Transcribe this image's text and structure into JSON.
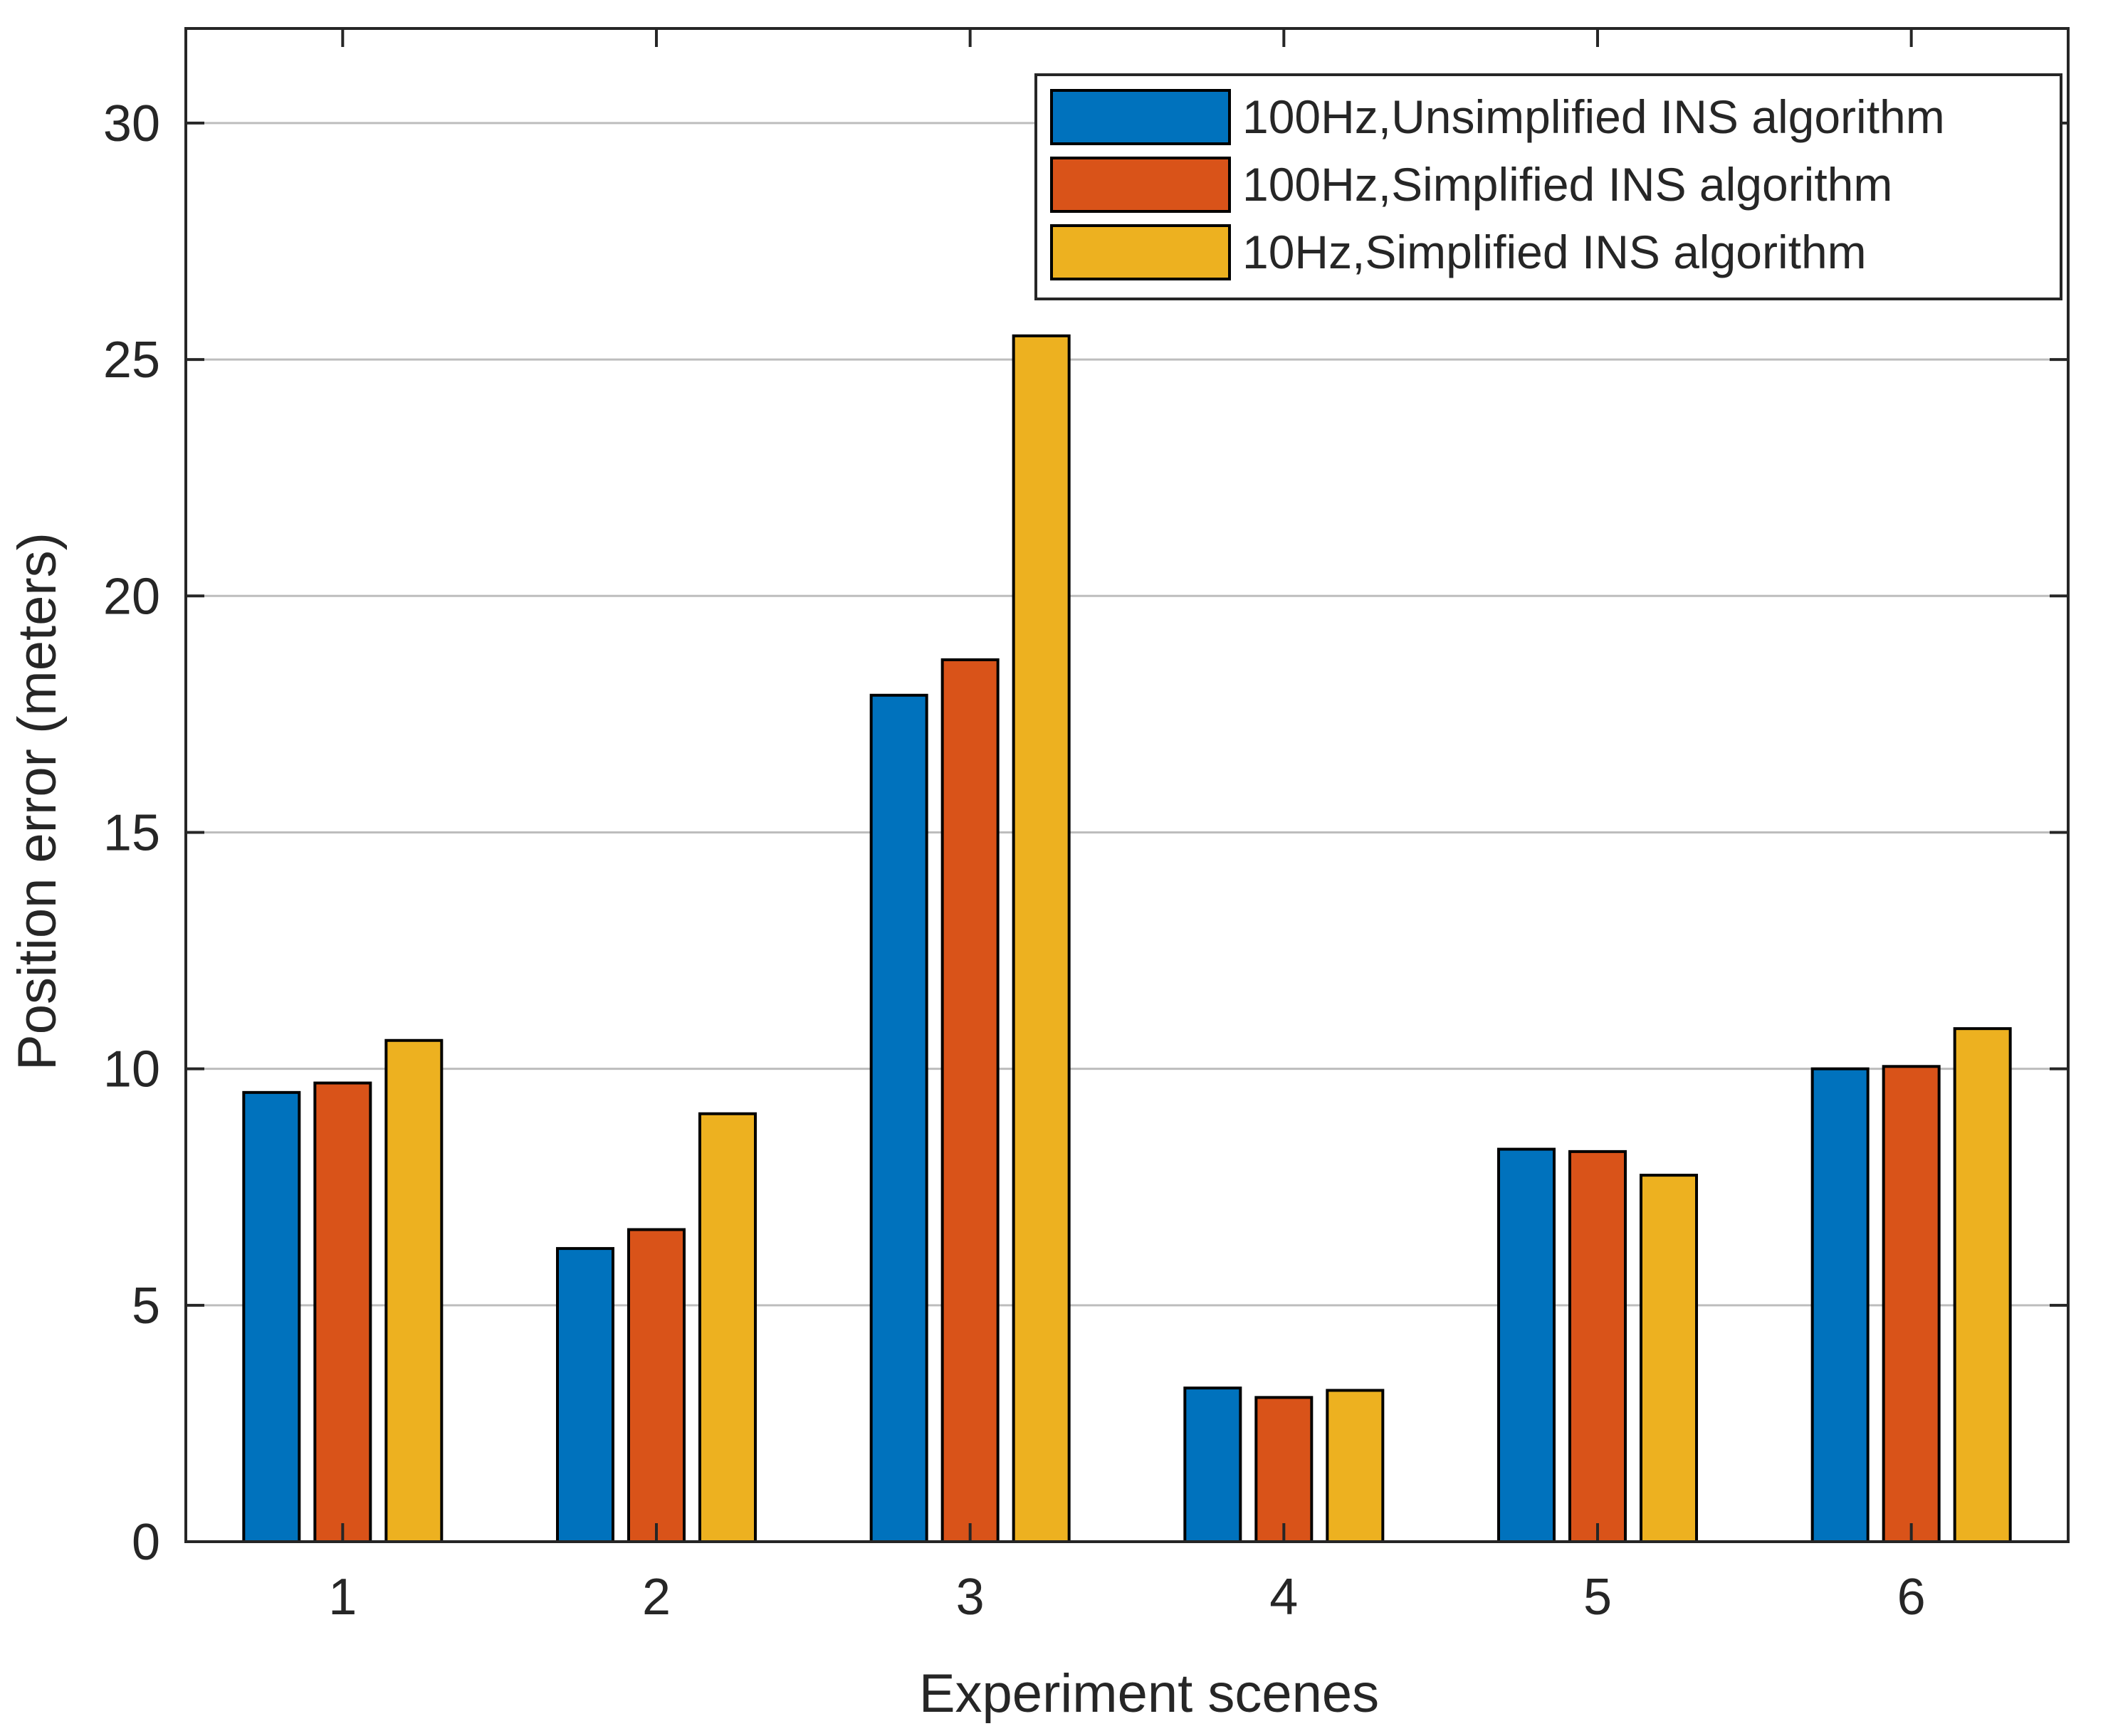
{
  "chart_data": {
    "type": "bar",
    "title": "",
    "xlabel": "Experiment scenes",
    "ylabel": "Position error (meters)",
    "categories": [
      "1",
      "2",
      "3",
      "4",
      "5",
      "6"
    ],
    "ylim": [
      0,
      32
    ],
    "yticks": [
      "0",
      "5",
      "10",
      "15",
      "20",
      "25",
      "30"
    ],
    "grid": "horizontal",
    "legend_position": "top-right",
    "series": [
      {
        "name": "100Hz,Unsimplified INS algorithm",
        "color": "#0072BD",
        "values": [
          9.5,
          6.2,
          17.9,
          3.25,
          8.3,
          10.0
        ]
      },
      {
        "name": "100Hz,Simplified INS algorithm",
        "color": "#D95319",
        "values": [
          9.7,
          6.6,
          18.65,
          3.05,
          8.25,
          10.05
        ]
      },
      {
        "name": "10Hz,Simplified INS algorithm",
        "color": "#EDB120",
        "values": [
          10.6,
          9.05,
          25.5,
          3.2,
          7.75,
          10.85
        ]
      }
    ]
  }
}
